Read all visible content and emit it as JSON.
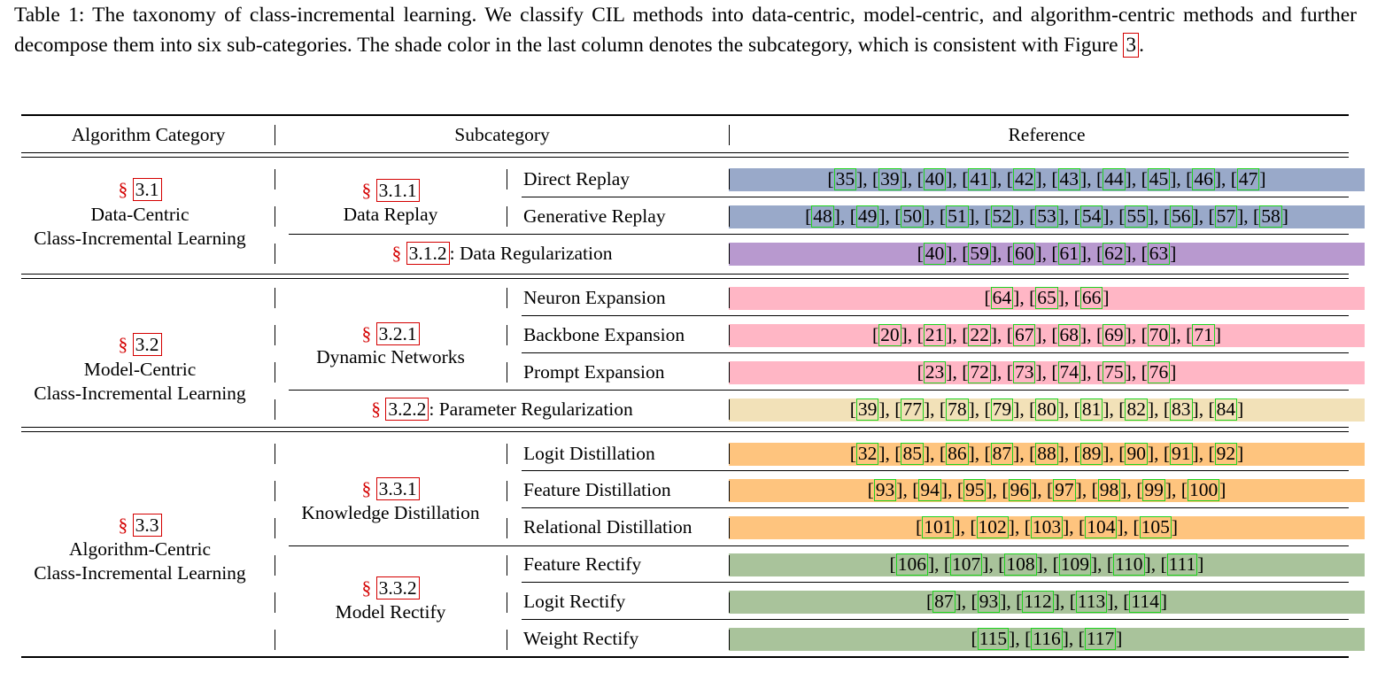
{
  "caption": {
    "text_before": "Table 1: The taxonomy of class-incremental learning. We classify CIL methods into data-centric, model-centric, and algorithm-centric methods and further decompose them into six sub-categories. The shade color in the last column denotes the subcategory, which is consistent with Figure ",
    "figure_ref": "3",
    "text_after": "."
  },
  "header": {
    "col1": "Algorithm Category",
    "col2": "Subcategory",
    "col3": "Reference"
  },
  "section_symbol": "§",
  "colors": {
    "data_replay": "#99a9c9",
    "data_regularization": "#b899cf",
    "dynamic_networks": "#ffb6c5",
    "parameter_regularization": "#f2e1b8",
    "knowledge_distillation": "#fec47e",
    "model_rectify": "#a9c39b"
  },
  "groups": [
    {
      "num": "3.1",
      "line1": "Data-Centric",
      "line2": "Class-Incremental Learning"
    },
    {
      "num": "3.2",
      "line1": "Model-Centric",
      "line2": "Class-Incremental Learning"
    },
    {
      "num": "3.3",
      "line1": "Algorithm-Centric",
      "line2": "Class-Incremental Learning"
    }
  ],
  "subcategories": [
    {
      "num": "3.1.1",
      "name": "Data Replay"
    },
    {
      "num": "3.1.2",
      "name": "Data Regularization"
    },
    {
      "num": "3.2.1",
      "name": "Dynamic Networks"
    },
    {
      "num": "3.2.2",
      "name": "Parameter Regularization"
    },
    {
      "num": "3.3.1",
      "name": "Knowledge Distillation"
    },
    {
      "num": "3.3.2",
      "name": "Model Rectify"
    }
  ],
  "rows": [
    {
      "label": "Direct Replay",
      "color": "data_replay",
      "refs": [
        "35",
        "39",
        "40",
        "41",
        "42",
        "43",
        "44",
        "45",
        "46",
        "47"
      ]
    },
    {
      "label": "Generative Replay",
      "color": "data_replay",
      "refs": [
        "48",
        "49",
        "50",
        "51",
        "52",
        "53",
        "54",
        "55",
        "56",
        "57",
        "58"
      ]
    },
    {
      "label": "",
      "color": "data_regularization",
      "refs": [
        "40",
        "59",
        "60",
        "61",
        "62",
        "63"
      ]
    },
    {
      "label": "Neuron Expansion",
      "color": "dynamic_networks",
      "refs": [
        "64",
        "65",
        "66"
      ]
    },
    {
      "label": "Backbone Expansion",
      "color": "dynamic_networks",
      "refs": [
        "20",
        "21",
        "22",
        "67",
        "68",
        "69",
        "70",
        "71"
      ]
    },
    {
      "label": "Prompt Expansion",
      "color": "dynamic_networks",
      "refs": [
        "23",
        "72",
        "73",
        "74",
        "75",
        "76"
      ]
    },
    {
      "label": "",
      "color": "parameter_regularization",
      "refs": [
        "39",
        "77",
        "78",
        "79",
        "80",
        "81",
        "82",
        "83",
        "84"
      ]
    },
    {
      "label": "Logit Distillation",
      "color": "knowledge_distillation",
      "refs": [
        "32",
        "85",
        "86",
        "87",
        "88",
        "89",
        "90",
        "91",
        "92"
      ]
    },
    {
      "label": "Feature Distillation",
      "color": "knowledge_distillation",
      "refs": [
        "93",
        "94",
        "95",
        "96",
        "97",
        "98",
        "99",
        "100"
      ]
    },
    {
      "label": "Relational Distillation",
      "color": "knowledge_distillation",
      "refs": [
        "101",
        "102",
        "103",
        "104",
        "105"
      ]
    },
    {
      "label": "Feature Rectify",
      "color": "model_rectify",
      "refs": [
        "106",
        "107",
        "108",
        "109",
        "110",
        "111"
      ]
    },
    {
      "label": "Logit Rectify",
      "color": "model_rectify",
      "refs": [
        "87",
        "93",
        "112",
        "113",
        "114"
      ]
    },
    {
      "label": "Weight Rectify",
      "color": "model_rectify",
      "refs": [
        "115",
        "116",
        "117"
      ]
    }
  ]
}
